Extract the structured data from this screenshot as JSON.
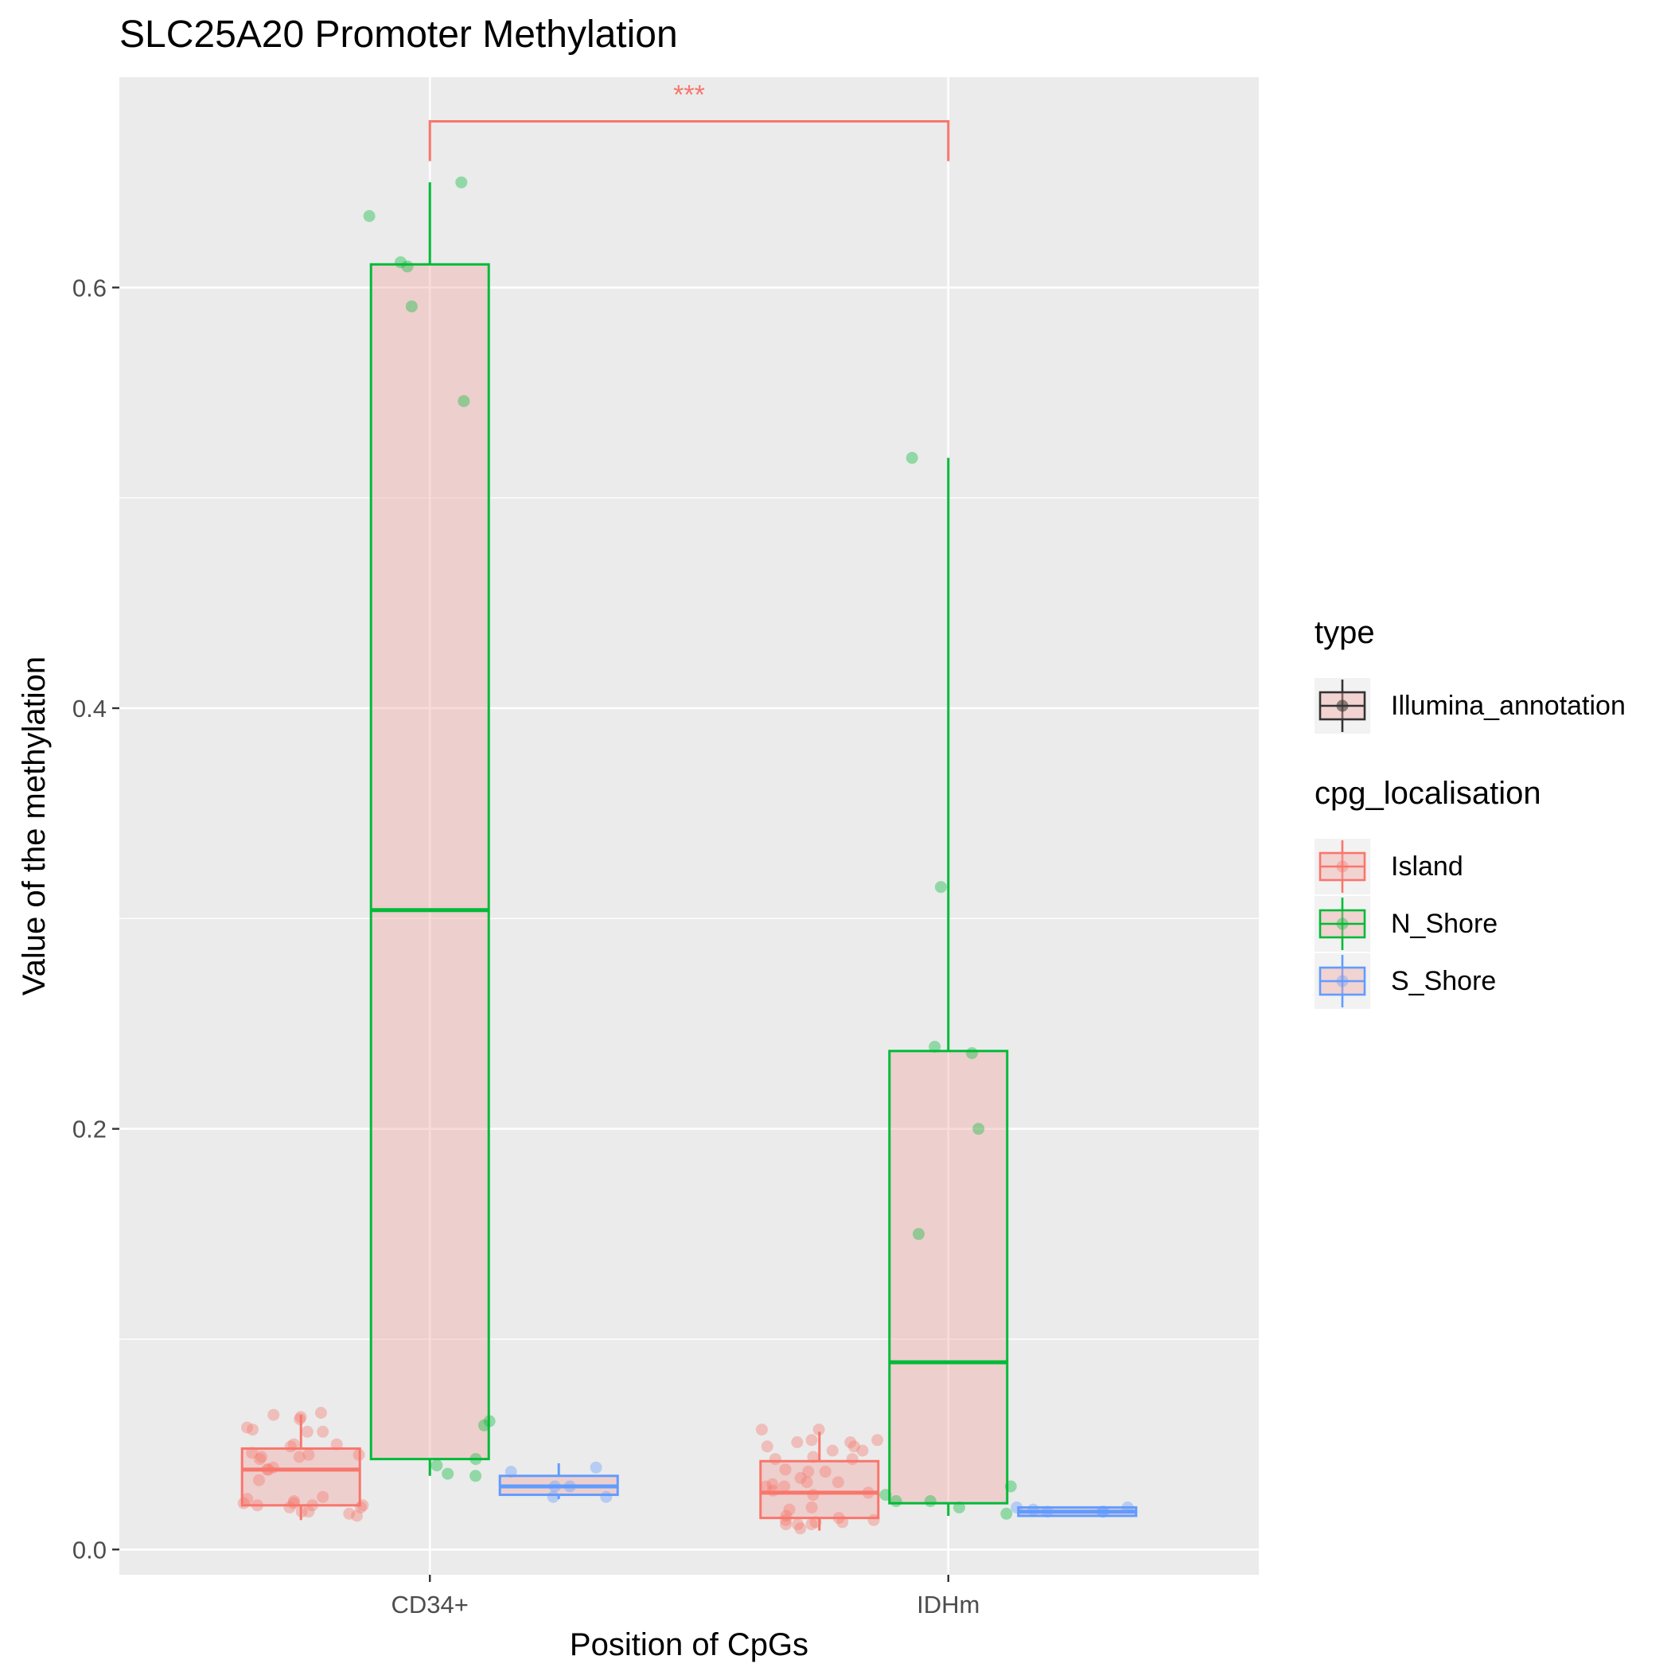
{
  "chart_data": {
    "type": "boxplot",
    "title": "SLC25A20 Promoter Methylation",
    "xlabel": "Position of CpGs",
    "ylabel": "Value of the methylation",
    "categories": [
      "CD34+",
      "IDHm"
    ],
    "ylim": [
      -0.012,
      0.7
    ],
    "yticks": [
      0.0,
      0.2,
      0.4,
      0.6
    ],
    "ytick_labels": [
      "0.0",
      "0.2",
      "0.4",
      "0.6"
    ],
    "grid": true,
    "legend_position": "right",
    "legends": [
      {
        "title": "type",
        "entries": [
          {
            "label": "Illumina_annotation",
            "color": "#333333"
          }
        ]
      },
      {
        "title": "cpg_localisation",
        "entries": [
          {
            "label": "Island",
            "color": "#F8766D"
          },
          {
            "label": "N_Shore",
            "color": "#00BA38"
          },
          {
            "label": "S_Shore",
            "color": "#619CFF"
          }
        ]
      }
    ],
    "series": [
      {
        "name": "Island",
        "color": "#F8766D",
        "boxes": [
          {
            "category": "CD34+",
            "q1": 0.021,
            "median": 0.038,
            "q3": 0.048,
            "whisker_low": 0.014,
            "whisker_high": 0.064
          },
          {
            "category": "IDHm",
            "q1": 0.015,
            "median": 0.027,
            "q3": 0.042,
            "whisker_low": 0.009,
            "whisker_high": 0.056
          }
        ],
        "points": [
          [
            "CD34+",
            0.062
          ],
          [
            "CD34+",
            0.045
          ],
          [
            "CD34+",
            0.046
          ],
          [
            "CD34+",
            0.038
          ],
          [
            "CD34+",
            0.022
          ],
          [
            "CD34+",
            0.018
          ],
          [
            "CD34+",
            0.024
          ],
          [
            "CD34+",
            0.017
          ],
          [
            "CD34+",
            0.021
          ],
          [
            "CD34+",
            0.02
          ],
          [
            "CD34+",
            0.064
          ],
          [
            "CD34+",
            0.05
          ],
          [
            "CD34+",
            0.065
          ],
          [
            "CD34+",
            0.058
          ],
          [
            "CD34+",
            0.063
          ],
          [
            "CD34+",
            0.038
          ],
          [
            "CD34+",
            0.025
          ],
          [
            "CD34+",
            0.021
          ],
          [
            "CD34+",
            0.018
          ],
          [
            "CD34+",
            0.044
          ],
          [
            "CD34+",
            0.043
          ],
          [
            "CD34+",
            0.022
          ],
          [
            "CD34+",
            0.016
          ],
          [
            "CD34+",
            0.02
          ],
          [
            "CD34+",
            0.057
          ],
          [
            "CD34+",
            0.05
          ],
          [
            "CD34+",
            0.045
          ],
          [
            "CD34+",
            0.044
          ],
          [
            "CD34+",
            0.049
          ],
          [
            "CD34+",
            0.056
          ],
          [
            "CD34+",
            0.056
          ],
          [
            "CD34+",
            0.039
          ],
          [
            "CD34+",
            0.033
          ],
          [
            "CD34+",
            0.021
          ],
          [
            "CD34+",
            0.023
          ],
          [
            "IDHm",
            0.038
          ],
          [
            "IDHm",
            0.037
          ],
          [
            "IDHm",
            0.012
          ],
          [
            "IDHm",
            0.043
          ],
          [
            "IDHm",
            0.049
          ],
          [
            "IDHm",
            0.034
          ],
          [
            "IDHm",
            0.01
          ],
          [
            "IDHm",
            0.03
          ],
          [
            "IDHm",
            0.014
          ],
          [
            "IDHm",
            0.016
          ],
          [
            "IDHm",
            0.027
          ],
          [
            "IDHm",
            0.013
          ],
          [
            "IDHm",
            0.014
          ],
          [
            "IDHm",
            0.047
          ],
          [
            "IDHm",
            0.032
          ],
          [
            "IDHm",
            0.043
          ],
          [
            "IDHm",
            0.015
          ],
          [
            "IDHm",
            0.028
          ],
          [
            "IDHm",
            0.03
          ],
          [
            "IDHm",
            0.026
          ],
          [
            "IDHm",
            0.049
          ],
          [
            "IDHm",
            0.057
          ],
          [
            "IDHm",
            0.037
          ],
          [
            "IDHm",
            0.013
          ],
          [
            "IDHm",
            0.032
          ],
          [
            "IDHm",
            0.052
          ],
          [
            "IDHm",
            0.051
          ],
          [
            "IDHm",
            0.012
          ],
          [
            "IDHm",
            0.057
          ],
          [
            "IDHm",
            0.052
          ],
          [
            "IDHm",
            0.047
          ],
          [
            "IDHm",
            0.044
          ],
          [
            "IDHm",
            0.02
          ],
          [
            "IDHm",
            0.019
          ],
          [
            "IDHm",
            0.012
          ],
          [
            "IDHm",
            0.051
          ],
          [
            "IDHm",
            0.031
          ]
        ]
      },
      {
        "name": "N_Shore",
        "color": "#00BA38",
        "boxes": [
          {
            "category": "CD34+",
            "q1": 0.043,
            "median": 0.304,
            "q3": 0.611,
            "whisker_low": 0.035,
            "whisker_high": 0.65
          },
          {
            "category": "IDHm",
            "q1": 0.022,
            "median": 0.089,
            "q3": 0.237,
            "whisker_low": 0.016,
            "whisker_high": 0.519
          }
        ],
        "points": [
          [
            "CD34+",
            0.612
          ],
          [
            "CD34+",
            0.546
          ],
          [
            "CD34+",
            0.035
          ],
          [
            "CD34+",
            0.061
          ],
          [
            "CD34+",
            0.059
          ],
          [
            "CD34+",
            0.043
          ],
          [
            "CD34+",
            0.65
          ],
          [
            "CD34+",
            0.036
          ],
          [
            "CD34+",
            0.04
          ],
          [
            "CD34+",
            0.634
          ],
          [
            "CD34+",
            0.61
          ],
          [
            "CD34+",
            0.591
          ],
          [
            "IDHm",
            0.519
          ],
          [
            "IDHm",
            0.239
          ],
          [
            "IDHm",
            0.236
          ],
          [
            "IDHm",
            0.2
          ],
          [
            "IDHm",
            0.15
          ],
          [
            "IDHm",
            0.017
          ],
          [
            "IDHm",
            0.026
          ],
          [
            "IDHm",
            0.023
          ],
          [
            "IDHm",
            0.02
          ],
          [
            "IDHm",
            0.315
          ],
          [
            "IDHm",
            0.023
          ],
          [
            "IDHm",
            0.03
          ]
        ]
      },
      {
        "name": "S_Shore",
        "color": "#619CFF",
        "boxes": [
          {
            "category": "CD34+",
            "q1": 0.026,
            "median": 0.03,
            "q3": 0.035,
            "whisker_low": 0.024,
            "whisker_high": 0.041
          },
          {
            "category": "IDHm",
            "q1": 0.016,
            "median": 0.018,
            "q3": 0.02,
            "whisker_low": 0.016,
            "whisker_high": 0.02
          }
        ],
        "points": [
          [
            "CD34+",
            0.025
          ],
          [
            "CD34+",
            0.025
          ],
          [
            "CD34+",
            0.03
          ],
          [
            "CD34+",
            0.03
          ],
          [
            "CD34+",
            0.037
          ],
          [
            "CD34+",
            0.039
          ],
          [
            "IDHm",
            0.02
          ],
          [
            "IDHm",
            0.018
          ],
          [
            "IDHm",
            0.02
          ],
          [
            "IDHm",
            0.019
          ],
          [
            "IDHm",
            0.018
          ],
          [
            "IDHm",
            0.018
          ]
        ]
      }
    ],
    "annotations": [
      {
        "text": "***",
        "from": "CD34+",
        "to": "IDHm",
        "y": 0.679,
        "color": "#F8766D"
      }
    ]
  }
}
